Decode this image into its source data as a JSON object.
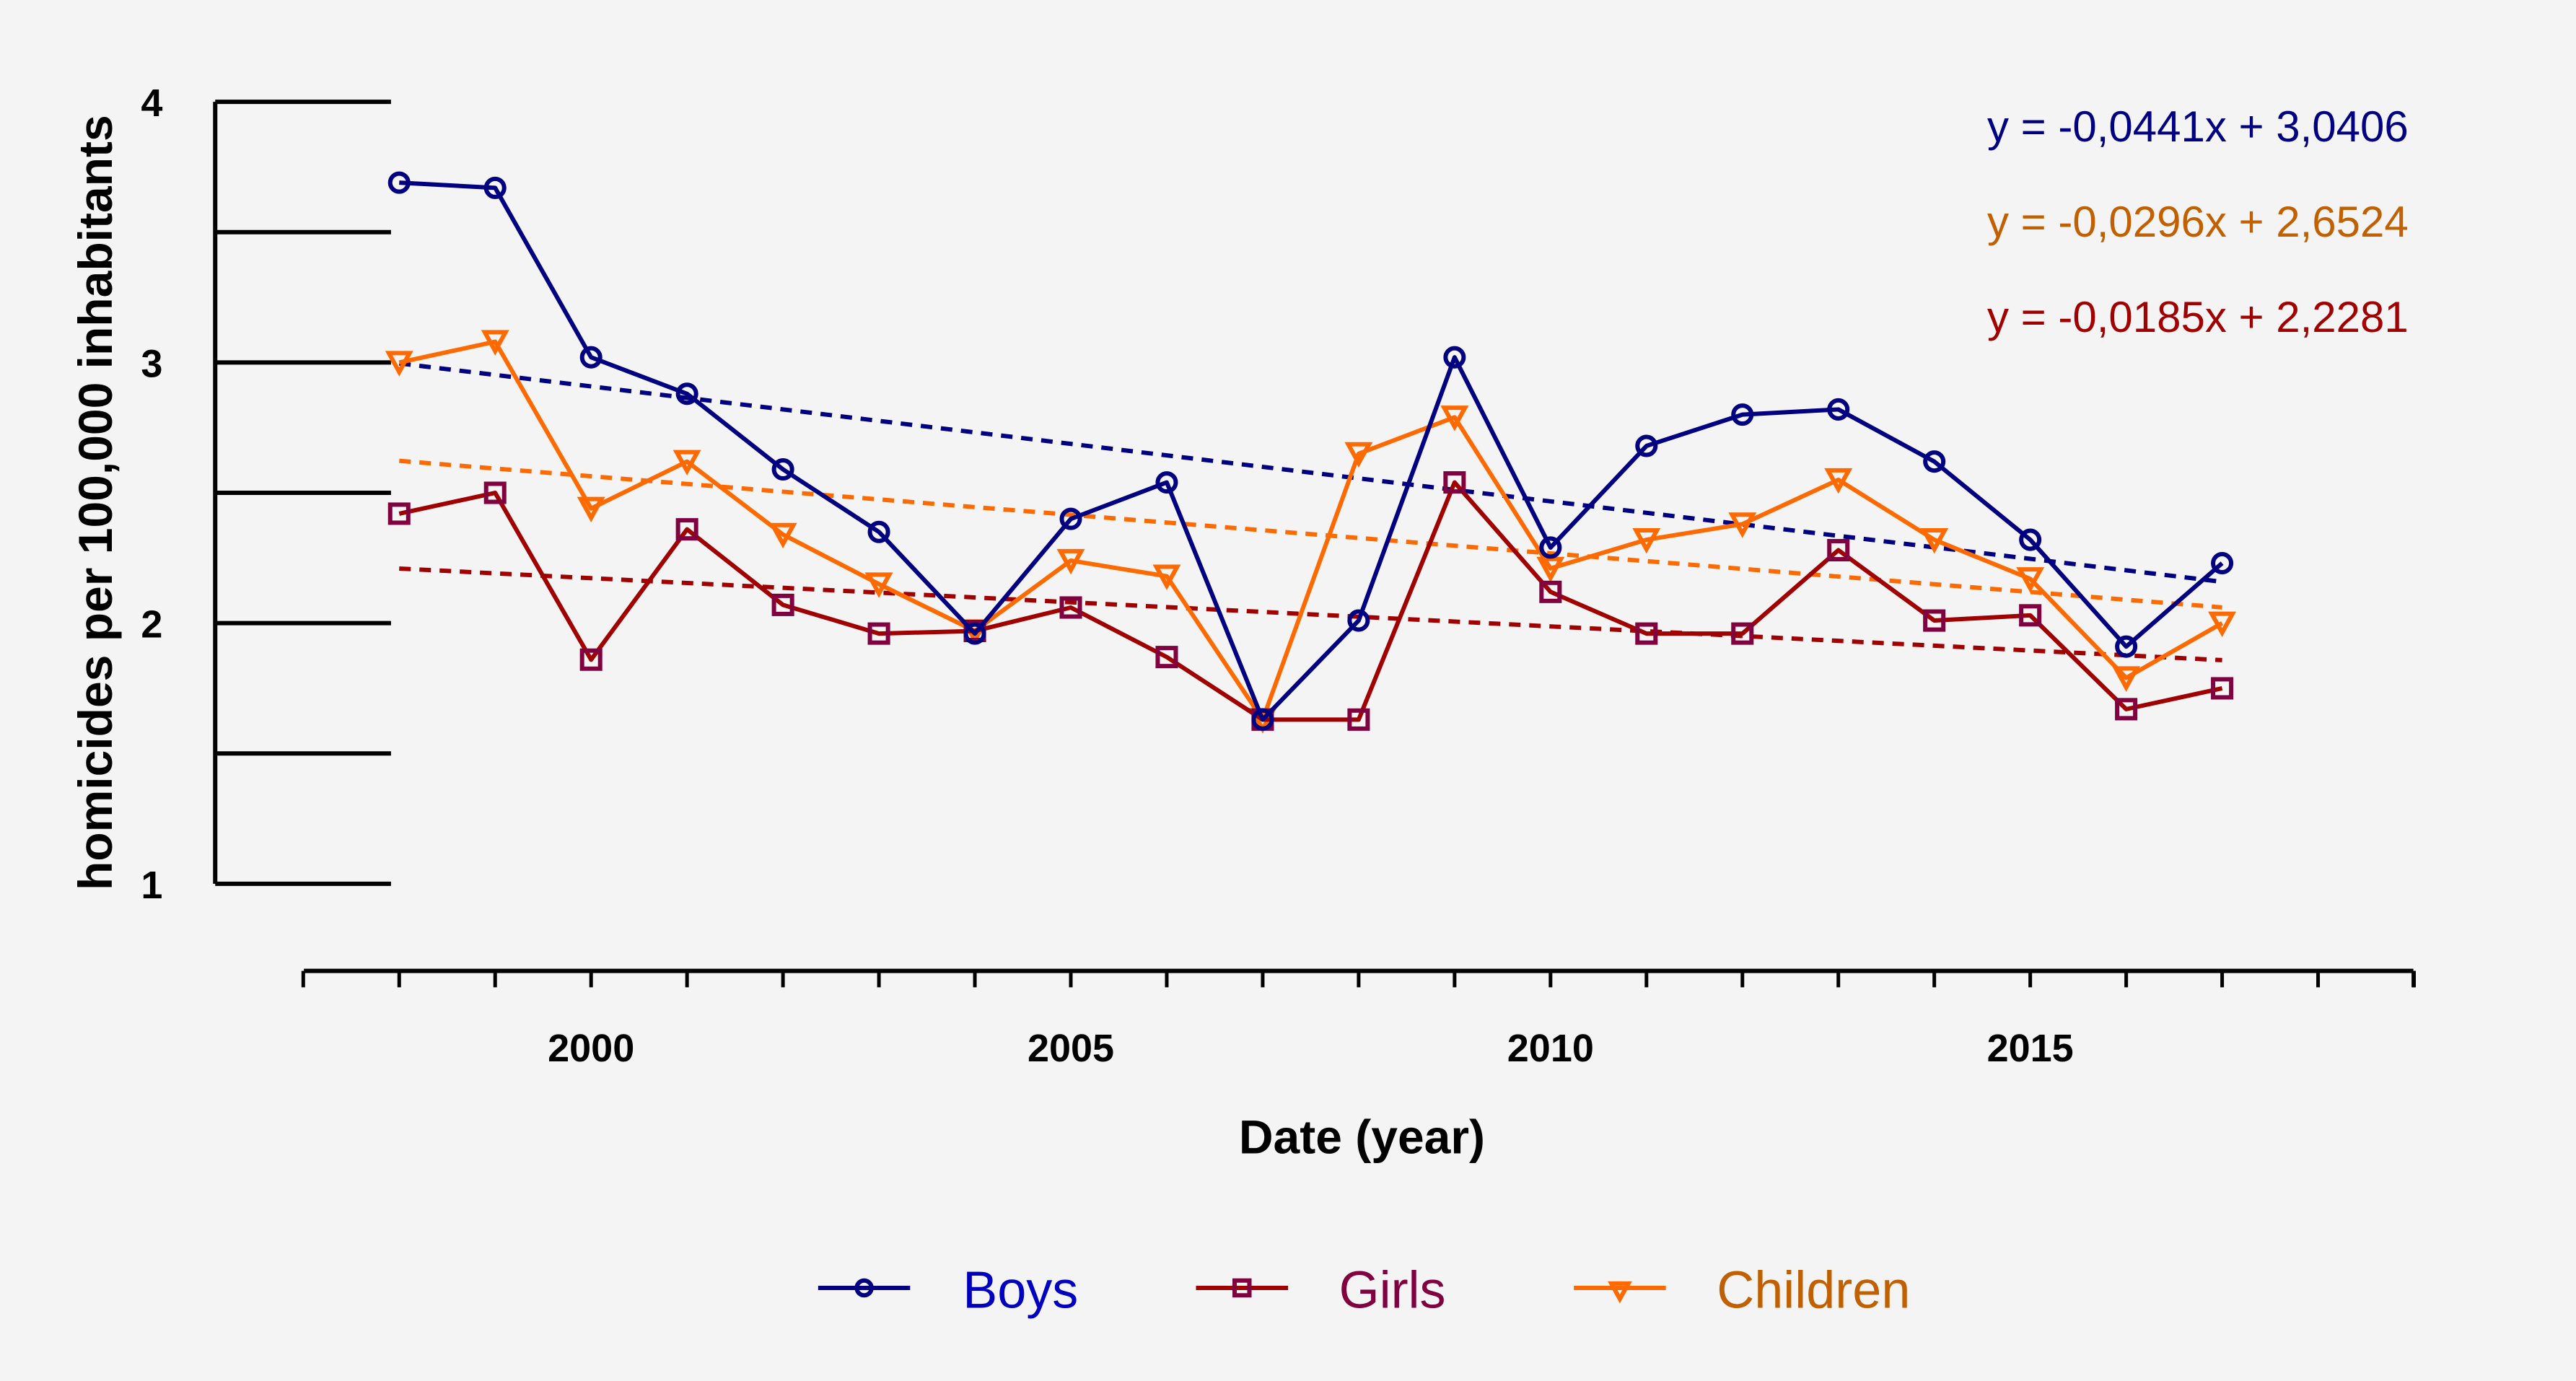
{
  "chart_data": {
    "type": "line",
    "title": "",
    "xlabel": "Date (year)",
    "ylabel": "homicides per 100,000 inhabitants",
    "xlim": [
      1996,
      2019
    ],
    "ylim": [
      1,
      4
    ],
    "x_ticks": [
      2000,
      2005,
      2010,
      2015
    ],
    "y_ticks": [
      1,
      2,
      3,
      4
    ],
    "y_tick_labels": [
      "1",
      "2",
      "3",
      "4"
    ],
    "x_tick_labels": [
      "2000",
      "2005",
      "2010",
      "2015"
    ],
    "x_minor_ticks": [
      1996,
      1997,
      1998,
      1999,
      2000,
      2001,
      2002,
      2003,
      2004,
      2005,
      2006,
      2007,
      2008,
      2009,
      2010,
      2011,
      2012,
      2013,
      2014,
      2015,
      2016,
      2017,
      2018,
      2019
    ],
    "grid": false,
    "legend_position": "bottom",
    "x": [
      1998,
      1999,
      2000,
      2001,
      2002,
      2003,
      2004,
      2005,
      2006,
      2007,
      2008,
      2009,
      2010,
      2011,
      2012,
      2013,
      2014,
      2015,
      2016,
      2017
    ],
    "series": [
      {
        "name": "Boys",
        "marker": "circle",
        "color": "#000080",
        "label_color": "#0000c0",
        "values": [
          3.69,
          3.67,
          3.02,
          2.88,
          2.59,
          2.35,
          1.96,
          2.4,
          2.54,
          1.63,
          2.01,
          3.02,
          2.29,
          2.68,
          2.8,
          2.82,
          2.62,
          2.32,
          1.91,
          2.23
        ],
        "trendline": {
          "slope": -0.0441,
          "intercept": 3.0406,
          "equation": "y = -0,0441x + 3,0406",
          "color": "#000080"
        }
      },
      {
        "name": "Girls",
        "marker": "square",
        "color": "#a00000",
        "marker_color": "#800040",
        "label_color": "#800040",
        "values": [
          2.42,
          2.5,
          1.86,
          2.36,
          2.07,
          1.96,
          1.97,
          2.06,
          1.87,
          1.63,
          1.63,
          2.54,
          2.12,
          1.96,
          1.96,
          2.28,
          2.01,
          2.03,
          1.67,
          1.75
        ],
        "trendline": {
          "slope": -0.0185,
          "intercept": 2.2281,
          "equation": "y = -0,0185x + 2,2281",
          "color": "#a00000"
        }
      },
      {
        "name": "Children",
        "marker": "triangle-down",
        "color": "#ff6a00",
        "label_color": "#c06000",
        "values": [
          3.0,
          3.08,
          2.44,
          2.62,
          2.34,
          2.15,
          1.97,
          2.24,
          2.18,
          1.63,
          2.65,
          2.79,
          2.21,
          2.32,
          2.38,
          2.55,
          2.32,
          2.17,
          1.79,
          2.0
        ],
        "trendline": {
          "slope": -0.0296,
          "intercept": 2.6524,
          "equation": "y = -0,0296x + 2,6524",
          "color": "#ff6a00"
        }
      }
    ],
    "equation_order": [
      "Boys",
      "Children",
      "Girls"
    ],
    "equation_colors": {
      "Boys": "#000080",
      "Children": "#c06000",
      "Girls": "#a00000"
    }
  }
}
